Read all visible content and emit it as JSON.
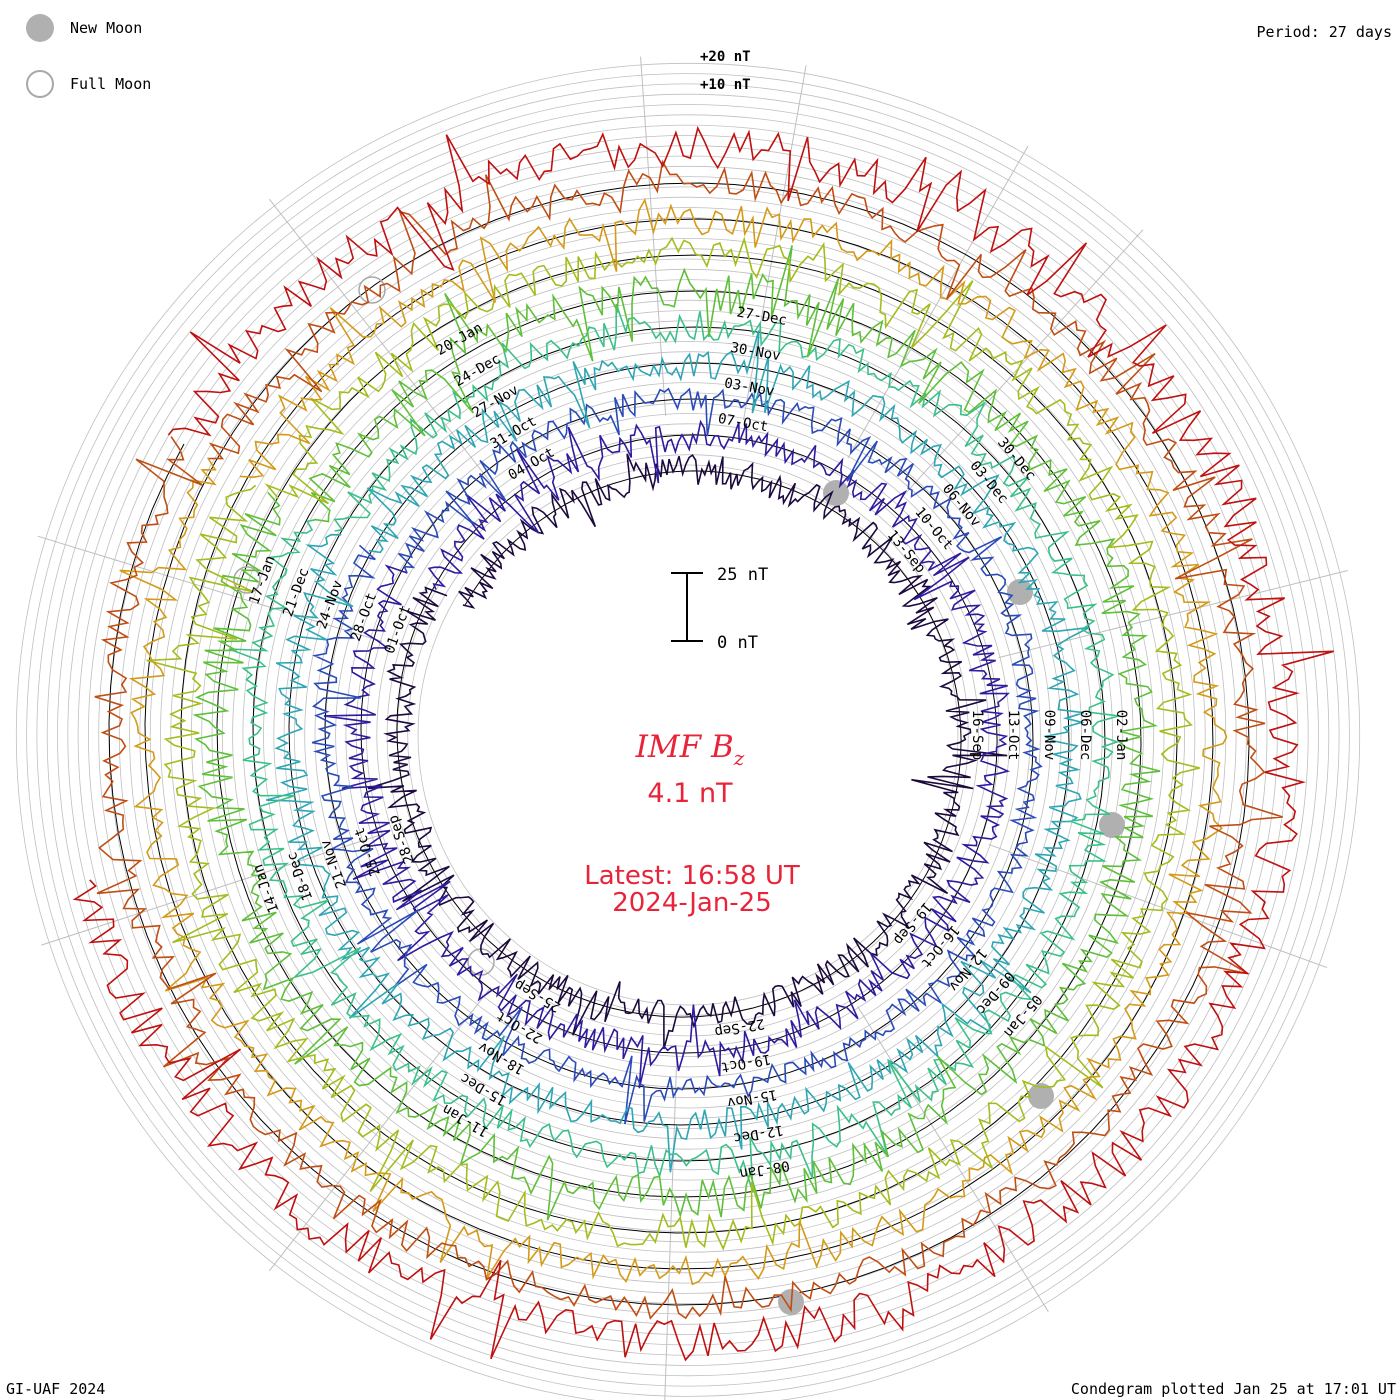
{
  "legend": {
    "new_moon_label": "New Moon",
    "full_moon_label": "Full Moon"
  },
  "period_label": "Period: 27 days",
  "footer_left": "GI-UAF 2024",
  "footer_right": "Condegram plotted Jan 25 at 17:01 UT",
  "center": {
    "title": "IMF B",
    "title_sub": "z",
    "value": "4.1 nT",
    "latest": "Latest: 16:58 UT",
    "date": "2024-Jan-25"
  },
  "scale_bar": {
    "top_label": "25 nT",
    "bottom_label": "0 nT"
  },
  "top_scale": {
    "label_20": "+20 nT",
    "label_10": "+10 nT"
  },
  "colors": {
    "text_red": "#e8243a",
    "ring_grey": "#bfbfbf",
    "new_moon": "#b0b0b0",
    "full_moon_edge": "#a8a8a8"
  },
  "chart_data": {
    "type": "line",
    "title": "IMF Bz",
    "subtitle": "4.1 nT",
    "period_days": 27,
    "units": "nT",
    "scale_reference": [
      0,
      25
    ],
    "series": [
      {
        "color": "#1c0a3e",
        "amplitude_nT": 6,
        "dates": [
          "13-Sep",
          "16-Sep",
          "19-Sep",
          "22-Sep",
          "25-Sep",
          "28-Sep",
          "01-Oct",
          "04-Oct",
          "07-Oct"
        ]
      },
      {
        "color": "#2e1b9e",
        "amplitude_nT": 6,
        "dates": [
          "10-Oct",
          "13-Oct",
          "16-Oct",
          "19-Oct",
          "22-Oct",
          "25-Oct",
          "28-Oct",
          "31-Oct",
          "03-Nov"
        ]
      },
      {
        "color": "#2b4cb8",
        "amplitude_nT": 5,
        "dates": [
          "06-Nov",
          "09-Nov",
          "12-Nov",
          "15-Nov",
          "18-Nov",
          "21-Nov",
          "24-Nov",
          "27-Nov",
          "30-Nov"
        ]
      },
      {
        "color": "#2ea6b3",
        "amplitude_nT": 6,
        "dates": [
          "03-Dec",
          "06-Dec",
          "09-Dec",
          "12-Dec",
          "15-Dec",
          "18-Dec",
          "21-Dec",
          "24-Dec",
          "27-Dec"
        ]
      },
      {
        "color": "#3cc08a",
        "amplitude_nT": 6,
        "dates": [
          "30-Dec",
          "02-Jan",
          "05-Jan",
          "08-Jan",
          "11-Jan",
          "14-Jan",
          "17-Jan",
          "20-Jan"
        ]
      },
      {
        "color": "#5fbf3a",
        "amplitude_nT": 8
      },
      {
        "color": "#a4bc1c",
        "amplitude_nT": 7
      },
      {
        "color": "#d49a18",
        "amplitude_nT": 6
      },
      {
        "color": "#c04e14",
        "amplitude_nT": 6
      },
      {
        "color": "#c01010",
        "amplitude_nT": 8
      }
    ],
    "date_labels": [
      "13-Sep",
      "16-Sep",
      "19-Sep",
      "22-Sep",
      "25-Sep",
      "28-Sep",
      "01-Oct",
      "04-Oct",
      "07-Oct",
      "10-Oct",
      "13-Oct",
      "16-Oct",
      "19-Oct",
      "22-Oct",
      "25-Oct",
      "28-Oct",
      "31-Oct",
      "03-Nov",
      "06-Nov",
      "09-Nov",
      "12-Nov",
      "15-Nov",
      "18-Nov",
      "21-Nov",
      "24-Nov",
      "27-Nov",
      "30-Nov",
      "03-Dec",
      "06-Dec",
      "09-Dec",
      "12-Dec",
      "15-Dec",
      "18-Dec",
      "21-Dec",
      "24-Dec",
      "27-Dec",
      "30-Dec",
      "02-Jan",
      "05-Jan",
      "08-Jan",
      "11-Jan",
      "14-Jan",
      "17-Jan",
      "20-Jan"
    ],
    "new_moons": [
      "14-Oct",
      "13-Nov",
      "13-Dec",
      "11-Jan"
    ],
    "full_moons": [
      "28-Sep",
      "28-Oct",
      "27-Nov",
      "27-Dec"
    ]
  }
}
